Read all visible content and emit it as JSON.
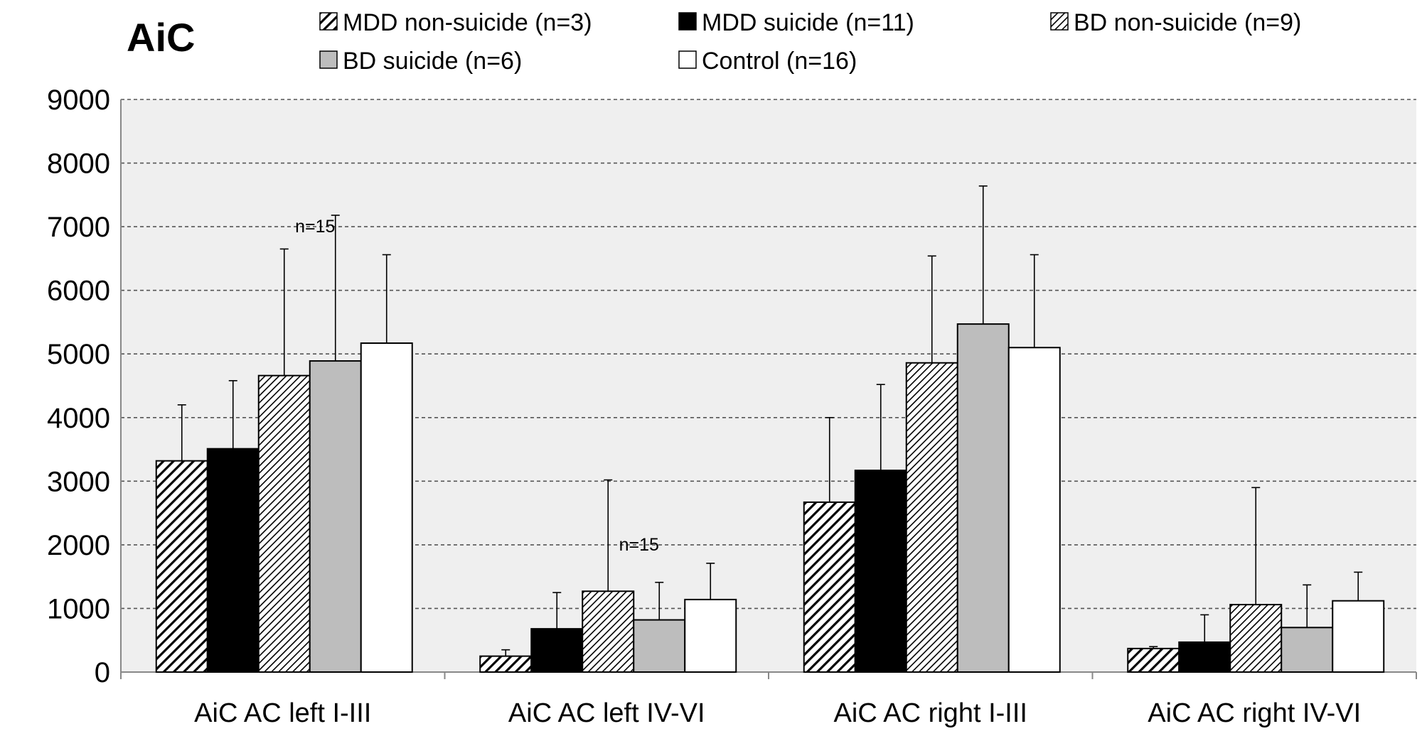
{
  "chart_data": {
    "type": "bar",
    "title": "AiC",
    "xlabel": "",
    "ylabel": "",
    "ylim": [
      0,
      9000
    ],
    "yticks": [
      0,
      1000,
      2000,
      3000,
      4000,
      5000,
      6000,
      7000,
      8000,
      9000
    ],
    "grid": "horizontal dashed",
    "legend_position": "top",
    "categories": [
      "AiC AC left I-III",
      "AiC AC left IV-VI",
      "AiC AC right I-III",
      "AiC AC right IV-VI"
    ],
    "series": [
      {
        "name": "MDD non-suicide (n=3)",
        "pattern": "hatch-wide",
        "fill": "#ffffff",
        "values": [
          3320,
          250,
          2670,
          370
        ],
        "errors": [
          4200,
          350,
          4000,
          400
        ]
      },
      {
        "name": "MDD suicide (n=11)",
        "pattern": "solid",
        "fill": "#000000",
        "values": [
          3510,
          680,
          3170,
          470
        ],
        "errors": [
          4580,
          1250,
          4520,
          900
        ]
      },
      {
        "name": "BD non-suicide (n=9)",
        "pattern": "hatch-fine",
        "fill": "#ffffff",
        "values": [
          4660,
          1270,
          4860,
          1060
        ],
        "errors": [
          6650,
          3020,
          6540,
          2900
        ]
      },
      {
        "name": "BD suicide (n=6)",
        "pattern": "solid",
        "fill": "#bdbdbd",
        "values": [
          4890,
          820,
          5470,
          700
        ],
        "errors": [
          7180,
          1410,
          7640,
          1370
        ]
      },
      {
        "name": "Control (n=16)",
        "pattern": "solid",
        "fill": "#ffffff",
        "values": [
          5170,
          1140,
          5100,
          1120
        ],
        "errors": [
          6560,
          1710,
          6560,
          1570
        ]
      }
    ],
    "annotations": [
      {
        "text": "n=15",
        "category_index": 0,
        "y": 7000
      },
      {
        "text": "n=15",
        "category_index": 1,
        "y": 2000
      }
    ],
    "colors": {
      "plot_background": "#efefef",
      "gridline": "#555555",
      "axis": "#888888"
    }
  }
}
